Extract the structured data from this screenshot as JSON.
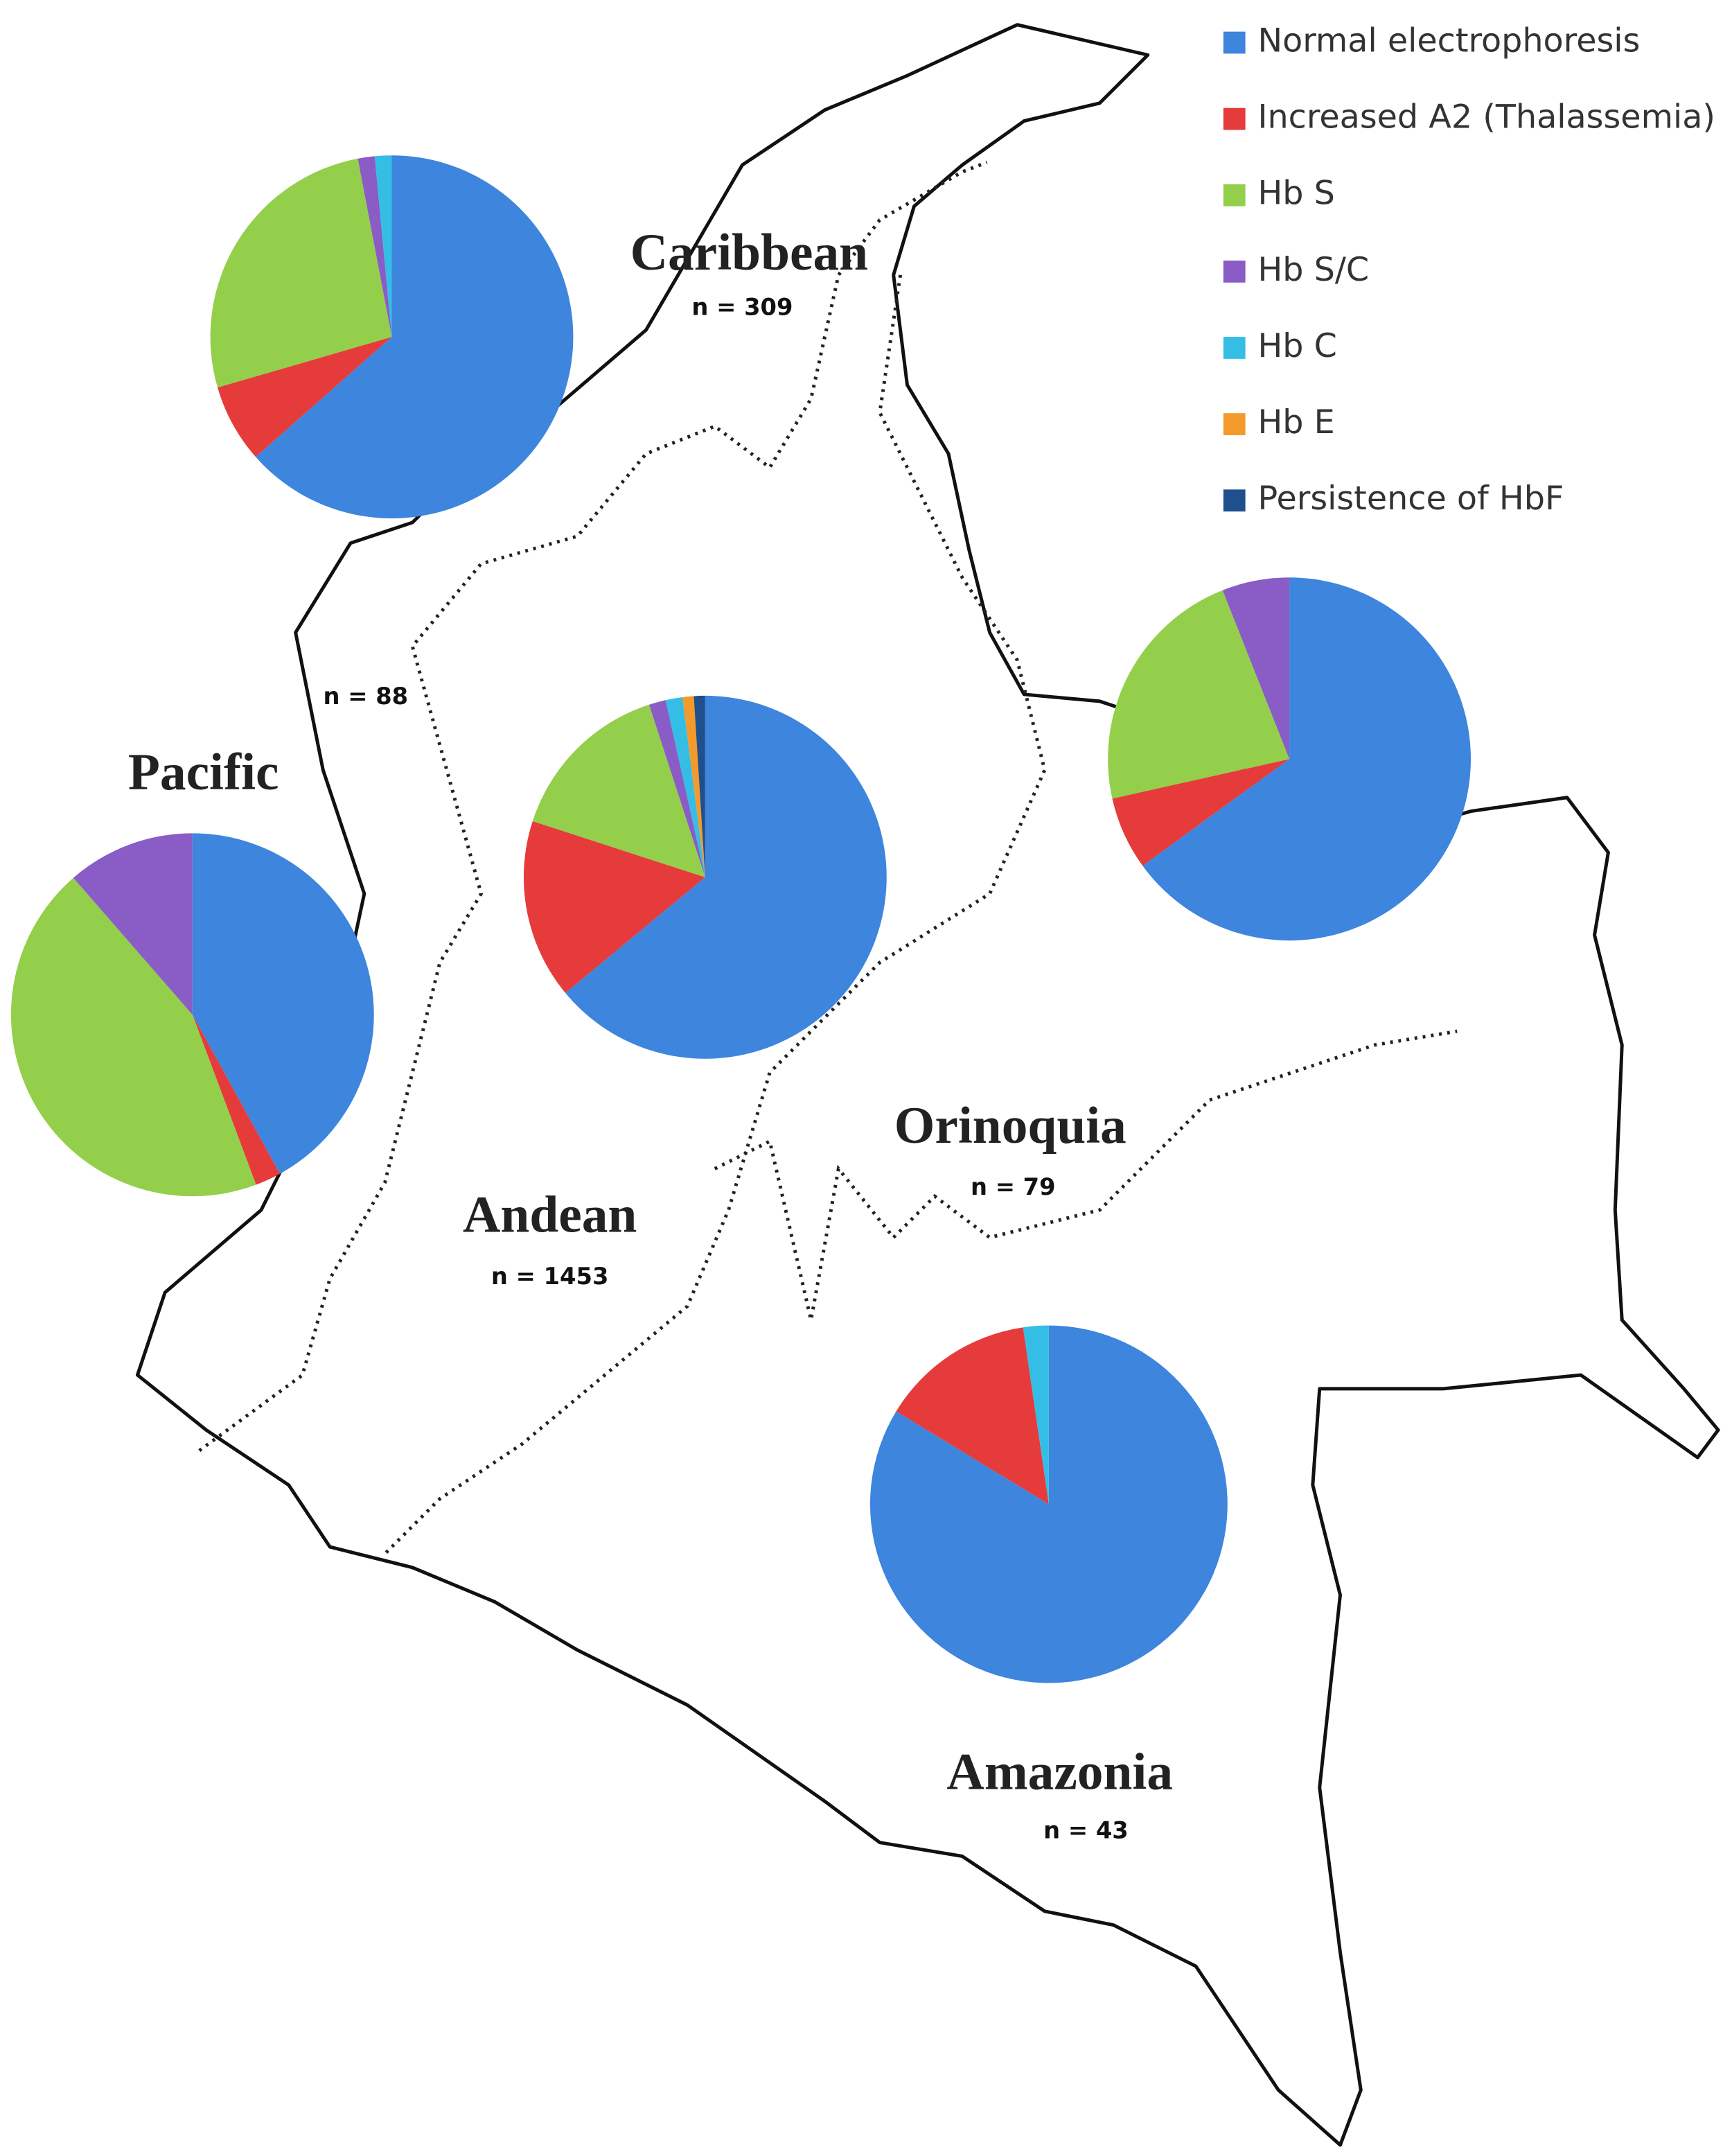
{
  "legend": {
    "names": [
      "Normal electrophoresis",
      "Increased A2 (Thalassemia)",
      "Hb S",
      "Hb S/C",
      "Hb C",
      "Hb E",
      "Persistence of HbF"
    ],
    "colors": [
      "#3d85dd",
      "#e63b3b",
      "#93cf4b",
      "#8a5cc5",
      "#34bee6",
      "#f39a2b",
      "#1f4f8c"
    ]
  },
  "chart_data": [
    {
      "type": "pie",
      "title": "Caribbean",
      "subtitle": "n = 309",
      "values": [
        63.5,
        7,
        26.5,
        1.5,
        1.5,
        0,
        0
      ]
    },
    {
      "type": "pie",
      "title": "Pacific",
      "subtitle": "n = 88",
      "values": [
        42,
        2.3,
        44.3,
        11.4,
        0,
        0,
        0
      ]
    },
    {
      "type": "pie",
      "title": "Andean",
      "subtitle": "n = 1453",
      "values": [
        64,
        16,
        15,
        1.5,
        1.5,
        1,
        1
      ]
    },
    {
      "type": "pie",
      "title": "Orinoquia",
      "subtitle": "n = 79",
      "values": [
        65,
        6.5,
        22.5,
        6,
        0,
        0,
        0
      ]
    },
    {
      "type": "pie",
      "title": "Amazonia",
      "subtitle": "n = 43",
      "values": [
        83.7,
        14,
        0,
        0,
        2.3,
        0,
        0
      ]
    }
  ]
}
